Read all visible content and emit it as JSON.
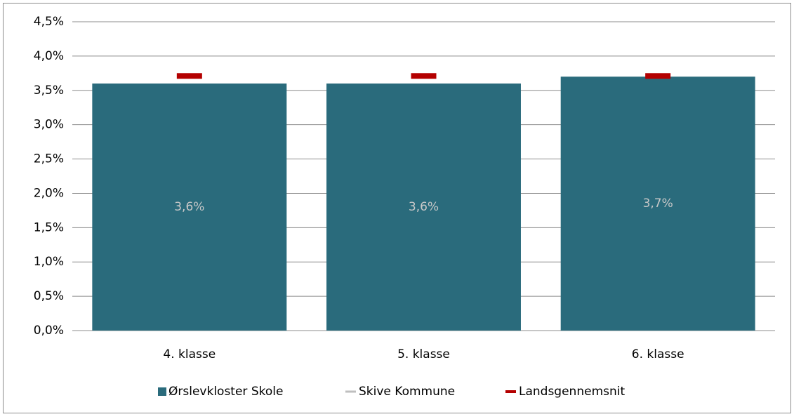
{
  "chart_data": {
    "type": "bar",
    "categories": [
      "4. klasse",
      "5. klasse",
      "6. klasse"
    ],
    "series": [
      {
        "name": "Ørslevkloster Skole",
        "color": "#2a6b7c",
        "type": "bar",
        "values": [
          3.6,
          3.6,
          3.7
        ],
        "value_labels": [
          "3,6%",
          "3,6%",
          "3,7%"
        ]
      },
      {
        "name": "Skive Kommune",
        "color": "#bfbfbf",
        "type": "line",
        "values": [
          null,
          null,
          null
        ]
      },
      {
        "name": "Landsgennemsnit",
        "color": "#b40000",
        "type": "dash",
        "values": [
          3.71,
          3.71,
          3.71
        ]
      }
    ],
    "ylim": [
      0,
      4.5
    ],
    "yticks": [
      {
        "value": 0,
        "label": "0,0%"
      },
      {
        "value": 0.5,
        "label": "0,5%"
      },
      {
        "value": 1,
        "label": "1,0%"
      },
      {
        "value": 1.5,
        "label": "1,5%"
      },
      {
        "value": 2,
        "label": "2,0%"
      },
      {
        "value": 2.5,
        "label": "2,5%"
      },
      {
        "value": 3,
        "label": "3,0%"
      },
      {
        "value": 3.5,
        "label": "3,5%"
      },
      {
        "value": 4,
        "label": "4,0%"
      },
      {
        "value": 4.5,
        "label": "4,5%"
      }
    ],
    "grid": true,
    "legend": "bottom"
  }
}
